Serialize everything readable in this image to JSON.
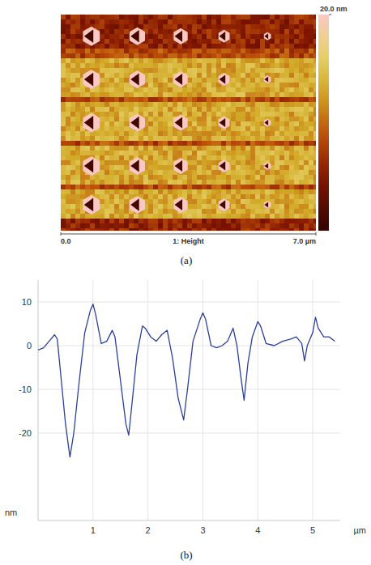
{
  "chart_data": [
    {
      "type": "image",
      "title": "1: Height",
      "caption": "(a)",
      "xlim": [
        0,
        7
      ],
      "xticks": [
        {
          "value": 0,
          "label": "0.0"
        },
        {
          "value": 7,
          "label": "7.0 µm"
        }
      ],
      "colorbar_range": [
        0,
        20
      ],
      "colorbar_ticks": [
        {
          "value": 20,
          "label": "20.0 nm"
        }
      ]
    },
    {
      "type": "line",
      "caption": "(b)",
      "x_label": "µm",
      "y_label": "nm",
      "color": "#2b3f9e",
      "grid": true,
      "xlim": [
        0,
        5.5
      ],
      "ylim": [
        -40,
        15
      ],
      "xticks": [
        1,
        2,
        3,
        4,
        5
      ],
      "yticks": [
        -20,
        -10,
        0,
        10
      ],
      "x": [
        0,
        0.1,
        0.2,
        0.3,
        0.35,
        0.4,
        0.5,
        0.58,
        0.65,
        0.75,
        0.85,
        0.95,
        1.0,
        1.05,
        1.15,
        1.25,
        1.35,
        1.4,
        1.5,
        1.6,
        1.65,
        1.72,
        1.8,
        1.9,
        1.95,
        2.05,
        2.15,
        2.25,
        2.35,
        2.45,
        2.55,
        2.65,
        2.72,
        2.82,
        2.95,
        3.0,
        3.05,
        3.15,
        3.25,
        3.35,
        3.45,
        3.55,
        3.62,
        3.7,
        3.75,
        3.82,
        3.9,
        4.0,
        4.05,
        4.15,
        4.3,
        4.45,
        4.6,
        4.7,
        4.8,
        4.85,
        4.9,
        5.0,
        5.05,
        5.1,
        5.2,
        5.3,
        5.4
      ],
      "values": [
        -1,
        -0.5,
        1,
        2.5,
        1.5,
        -5,
        -18,
        -25.5,
        -20,
        -8,
        3,
        8,
        9.5,
        7,
        0.5,
        1,
        3.5,
        2,
        -8,
        -18,
        -20.5,
        -12,
        -2,
        4.5,
        4,
        2,
        1,
        2.5,
        3.5,
        -3,
        -12,
        -17,
        -10,
        1,
        6,
        7.5,
        6,
        0,
        -0.5,
        0,
        1,
        4,
        0,
        -8,
        -12.5,
        -4,
        2,
        5.5,
        4.5,
        0.5,
        0,
        1,
        1.5,
        2,
        0.5,
        -3.5,
        0,
        3,
        6.5,
        4,
        2,
        2,
        1
      ]
    }
  ]
}
